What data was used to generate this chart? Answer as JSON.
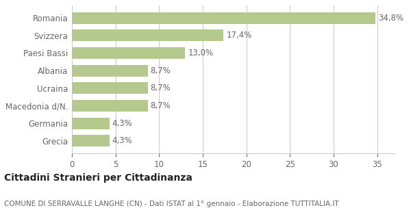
{
  "categories": [
    "Grecia",
    "Germania",
    "Macedonia d/N.",
    "Ucraina",
    "Albania",
    "Paesi Bassi",
    "Svizzera",
    "Romania"
  ],
  "values": [
    4.3,
    4.3,
    8.7,
    8.7,
    8.7,
    13.0,
    17.4,
    34.8
  ],
  "labels": [
    "4,3%",
    "4,3%",
    "8,7%",
    "8,7%",
    "8,7%",
    "13,0%",
    "17,4%",
    "34,8%"
  ],
  "bar_color": "#b5c98e",
  "title_bold": "Cittadini Stranieri per Cittadinanza",
  "subtitle": "COMUNE DI SERRAVALLE LANGHE (CN) - Dati ISTAT al 1° gennaio - Elaborazione TUTTITALIA.IT",
  "xlim": [
    0,
    37
  ],
  "xticks": [
    0,
    5,
    10,
    15,
    20,
    25,
    30,
    35
  ],
  "background_color": "#ffffff",
  "grid_color": "#cccccc",
  "bar_label_color": "#666666",
  "axis_label_color": "#666666",
  "title_fontsize": 10,
  "subtitle_fontsize": 7.5,
  "tick_fontsize": 8.5,
  "label_fontsize": 8.5,
  "bar_height": 0.65
}
